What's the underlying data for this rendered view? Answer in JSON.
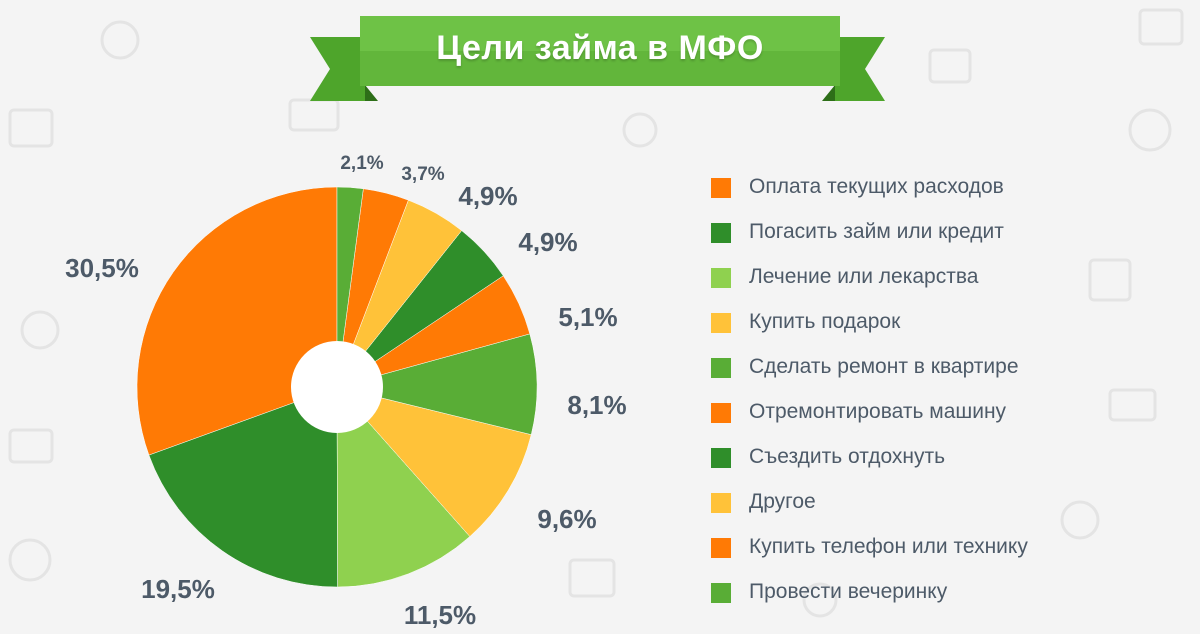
{
  "header": {
    "title": "Цели займа в МФО"
  },
  "colors": {
    "orange": "#ff7a05",
    "dark_green": "#2f8e2a",
    "light_green": "#8fd14f",
    "yellow": "#ffc239",
    "green": "#59ad36",
    "ribbon": "#62b63b",
    "ribbon_dark": "#3b8a1f",
    "text": "#4d5a68"
  },
  "chart_data": {
    "type": "pie",
    "title": "Цели займа в МФО",
    "legend_position": "right",
    "unit": "%",
    "start_angle_deg": -90,
    "slices": [
      {
        "label": "Оплата текущих расходов",
        "value": 30.5,
        "display": "30,5%",
        "color": "#ff7a05"
      },
      {
        "label": "Погасить займ или кредит",
        "value": 19.5,
        "display": "19,5%",
        "color": "#2f8e2a"
      },
      {
        "label": "Лечение или лекарства",
        "value": 11.5,
        "display": "11,5%",
        "color": "#8fd14f"
      },
      {
        "label": "Купить подарок",
        "value": 9.6,
        "display": "9,6%",
        "color": "#ffc239"
      },
      {
        "label": "Сделать ремонт в квартире",
        "value": 8.1,
        "display": "8,1%",
        "color": "#59ad36"
      },
      {
        "label": "Отремонтировать машину",
        "value": 5.1,
        "display": "5,1%",
        "color": "#ff7a05"
      },
      {
        "label": "Съездить отдохнуть",
        "value": 4.9,
        "display": "4,9%",
        "color": "#2f8e2a"
      },
      {
        "label": "Другое",
        "value": 4.9,
        "display": "4,9%",
        "color": "#ffc239"
      },
      {
        "label": "Купить телефон или технику",
        "value": 3.7,
        "display": "3,7%",
        "color": "#ff7a05"
      },
      {
        "label": "Провести вечеринку",
        "value": 2.1,
        "display": "2,1%",
        "color": "#59ad36"
      }
    ],
    "legend_order": [
      "Оплата текущих расходов",
      "Погасить займ или кредит",
      "Лечение или лекарства",
      "Купить подарок",
      "Сделать ремонт в квартире",
      "Отремонтировать машину",
      "Съездить отдохнуть",
      "Другое",
      "Купить телефон или технику",
      "Провести вечеринку"
    ]
  }
}
